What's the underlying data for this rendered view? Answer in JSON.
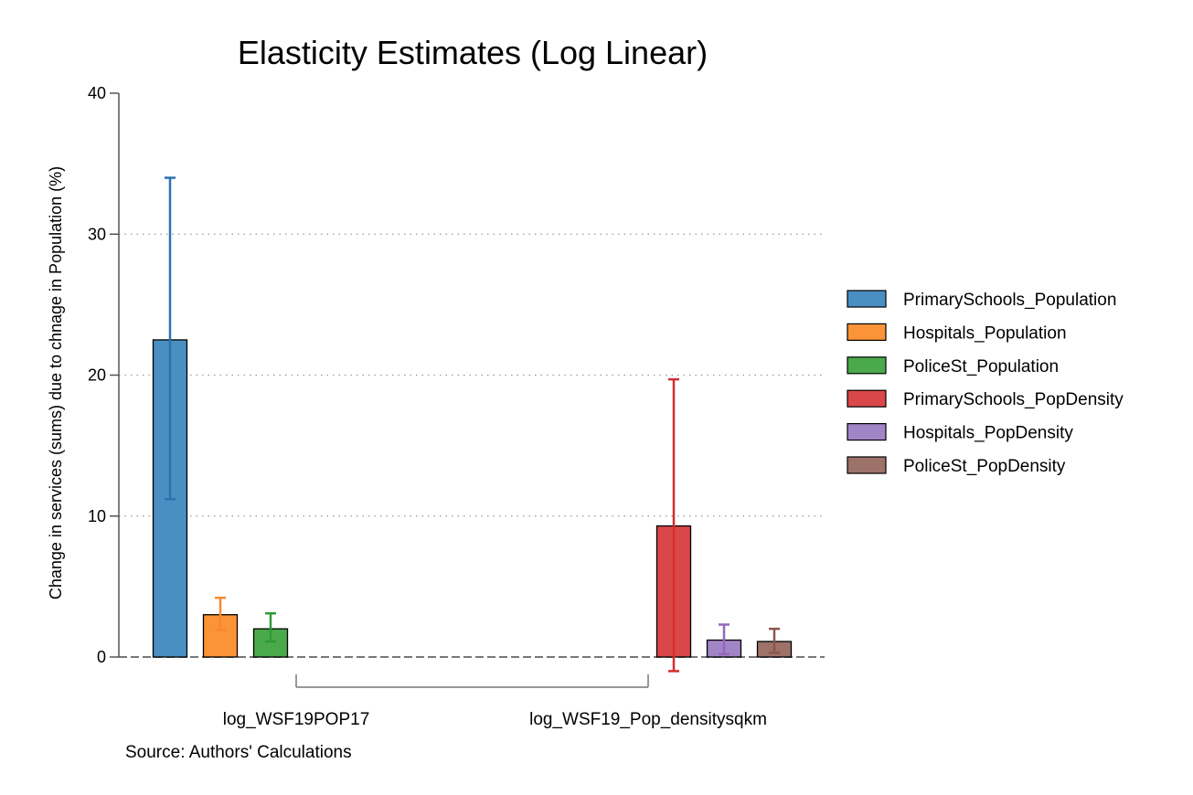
{
  "chart_data": {
    "type": "bar",
    "title": "Elasticity Estimates (Log Linear)",
    "ylabel": "Change in services (sums) due to chnage in Population (%)",
    "xlabel": "",
    "ylim": [
      0,
      40
    ],
    "yticks": [
      0,
      10,
      20,
      30,
      40
    ],
    "grid": "horizontal dotted",
    "legend_position": "right",
    "source_note": "Source: Authors' Calculations",
    "groups": [
      {
        "label": "log_WSF19POP17",
        "bars": [
          {
            "name": "PrimarySchools_Population",
            "value": 22.5,
            "ci_low": 11.2,
            "ci_high": 34.0,
            "color": "#4a8fc2"
          },
          {
            "name": "Hospitals_Population",
            "value": 3.0,
            "ci_low": 1.9,
            "ci_high": 4.2,
            "color": "#fb9436"
          },
          {
            "name": "PoliceSt_Population",
            "value": 2.0,
            "ci_low": 1.1,
            "ci_high": 3.1,
            "color": "#4aa94a"
          }
        ]
      },
      {
        "label": "log_WSF19_Pop_densitysqkm",
        "bars": [
          {
            "name": "PrimarySchools_PopDensity",
            "value": 9.3,
            "ci_low": -1.0,
            "ci_high": 19.7,
            "color": "#d9474a"
          },
          {
            "name": "Hospitals_PopDensity",
            "value": 1.2,
            "ci_low": 0.2,
            "ci_high": 2.3,
            "color": "#a285c6"
          },
          {
            "name": "PoliceSt_PopDensity",
            "value": 1.1,
            "ci_low": 0.3,
            "ci_high": 2.0,
            "color": "#9d7268"
          }
        ]
      }
    ],
    "error_colors": {
      "PrimarySchools_Population": "#2a72b1",
      "Hospitals_Population": "#f8892e",
      "PoliceSt_Population": "#2e9b37",
      "PrimarySchools_PopDensity": "#d52d2d",
      "Hospitals_PopDensity": "#9467bd",
      "PoliceSt_PopDensity": "#8c564b"
    }
  }
}
